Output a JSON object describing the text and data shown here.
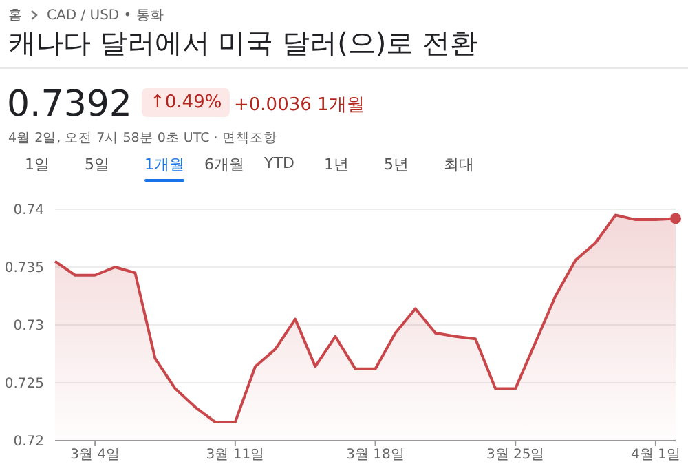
{
  "chart_data": {
    "type": "area",
    "title": "캐나다 달러에서 미국 달러(으)로 전환",
    "annotations": [
      "홈",
      "CAD / USD • 통화",
      "0.7392",
      "↑0.49%",
      "+0.0036 1개월",
      "4월 2일, 오전 7시 58분 0초 UTC · 면책조항",
      "1일",
      "5일",
      "1개월",
      "6개월",
      "YTD",
      "1년",
      "5년",
      "최대"
    ],
    "x": [
      "--03-02",
      "--03-03",
      "--03-04",
      "--03-05",
      "--03-06",
      "--03-07",
      "--03-08",
      "--03-09",
      "--03-10",
      "--03-11",
      "--03-12",
      "--03-13",
      "--03-14",
      "--03-15",
      "--03-16",
      "--03-17",
      "--03-18",
      "--03-19",
      "--03-20",
      "--03-21",
      "--03-22",
      "--03-23",
      "--03-24",
      "--03-25",
      "--03-26",
      "--03-27",
      "--03-28",
      "--03-29",
      "--03-30",
      "--03-31",
      "--04-01",
      "--04-02"
    ],
    "series": [
      {
        "color": "#c9474a",
        "values": [
          0.7355,
          0.7343,
          0.7343,
          0.735,
          0.7345,
          0.7271,
          0.7245,
          0.7229,
          0.7216,
          0.7216,
          0.7264,
          0.7279,
          0.7305,
          0.7264,
          0.729,
          0.7262,
          0.7262,
          0.7293,
          0.7314,
          0.7293,
          0.729,
          0.7288,
          0.7245,
          0.7245,
          0.7285,
          0.7325,
          0.7356,
          0.7371,
          0.7395,
          0.7391,
          0.7391,
          0.7392
        ]
      }
    ],
    "xlim": [
      "--03-02",
      "--04-02"
    ],
    "xticks": [
      {
        "value": "--03-04",
        "label": "3월 4일"
      },
      {
        "value": "--03-11",
        "label": "3월 11일"
      },
      {
        "value": "--03-18",
        "label": "3월 18일"
      },
      {
        "value": "--03-25",
        "label": "3월 25일"
      },
      {
        "value": "--04-01",
        "label": "4월 1일"
      }
    ],
    "ylim": [
      0.72,
      0.74
    ],
    "yticks": [
      0.72,
      0.725,
      0.73,
      0.735,
      0.74
    ],
    "grid": "y",
    "marker": "none",
    "legend": false
  }
}
